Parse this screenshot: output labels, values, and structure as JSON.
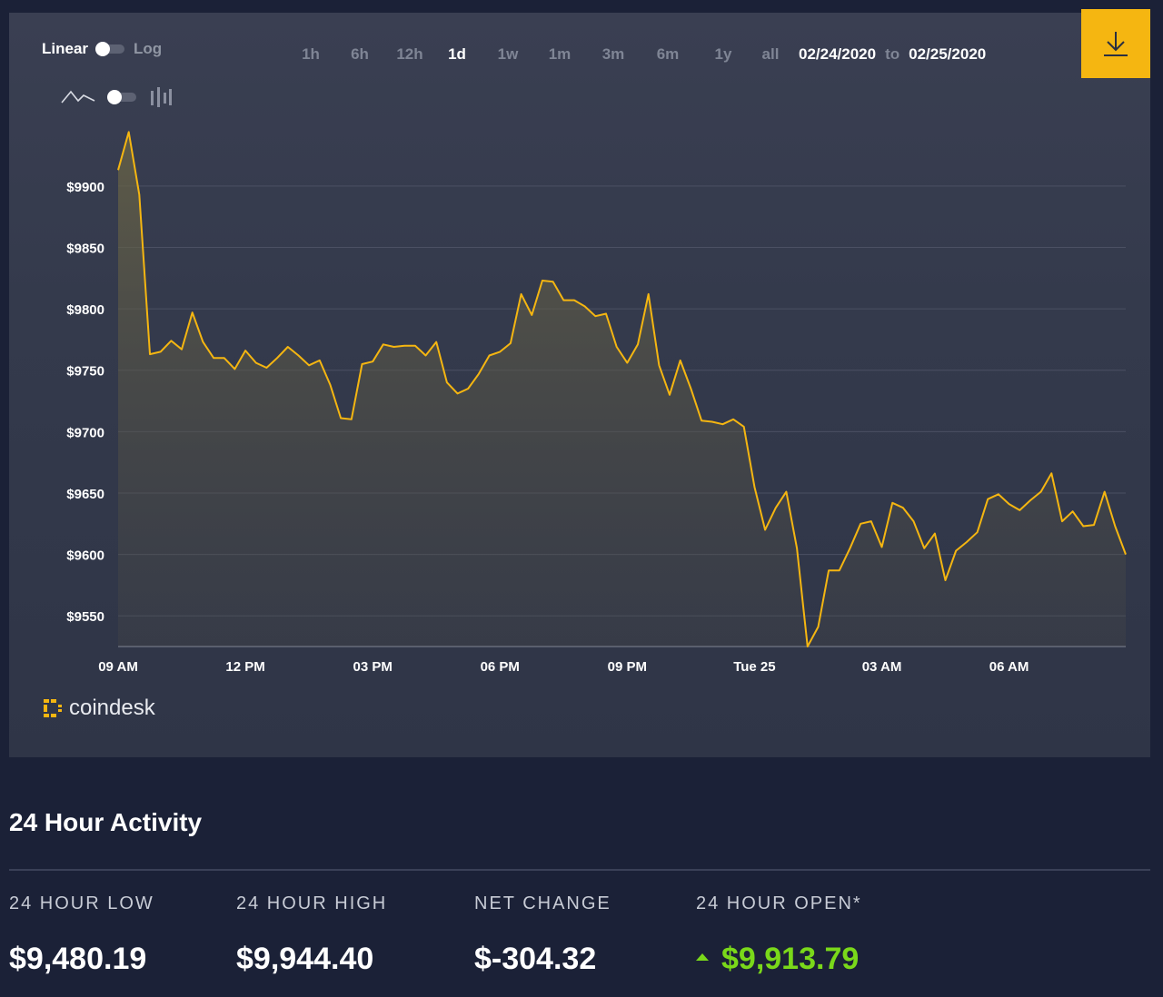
{
  "controls": {
    "scale_linear": "Linear",
    "scale_log": "Log",
    "ranges": [
      "1h",
      "6h",
      "12h",
      "1d",
      "1w",
      "1m",
      "3m",
      "6m",
      "1y",
      "all"
    ],
    "active_range": "1d",
    "date_from": "02/24/2020",
    "date_sep": "to",
    "date_to": "02/25/2020"
  },
  "brand": {
    "name": "coindesk"
  },
  "colors": {
    "line": "#f5b611",
    "accent": "#f5b611",
    "positive": "#7ad81a"
  },
  "chart_data": {
    "type": "area",
    "title": "",
    "xlabel": "",
    "ylabel": "",
    "ylim": [
      9525,
      9945
    ],
    "y_ticks": [
      "$9900",
      "$9850",
      "$9800",
      "$9750",
      "$9700",
      "$9650",
      "$9600",
      "$9550"
    ],
    "y_tick_values": [
      9900,
      9850,
      9800,
      9750,
      9700,
      9650,
      9600,
      9550
    ],
    "x_ticks": [
      "09 AM",
      "12 PM",
      "03 PM",
      "06 PM",
      "09 PM",
      "Tue 25",
      "03 AM",
      "06 AM"
    ],
    "x_tick_hours": [
      9,
      12,
      15,
      18,
      21,
      24,
      27,
      30
    ],
    "grid": true,
    "series": [
      {
        "x_hours": [
          9.0,
          9.25,
          9.5,
          9.75,
          10.0,
          10.25,
          10.5,
          10.75,
          11.0,
          11.25,
          11.5,
          11.75,
          12.0,
          12.25,
          12.5,
          12.75,
          13.0,
          13.25,
          13.5,
          13.75,
          14.0,
          14.25,
          14.5,
          14.75,
          15.0,
          15.25,
          15.5,
          15.75,
          16.0,
          16.25,
          16.5,
          16.75,
          17.0,
          17.25,
          17.5,
          17.75,
          18.0,
          18.25,
          18.5,
          18.75,
          19.0,
          19.25,
          19.5,
          19.75,
          20.0,
          20.25,
          20.5,
          20.75,
          21.0,
          21.25,
          21.5,
          21.75,
          22.0,
          22.25,
          22.5,
          22.75,
          23.0,
          23.25,
          23.5,
          23.75,
          24.0,
          24.25,
          24.5,
          24.75,
          25.0,
          25.25,
          25.5,
          25.75,
          26.0,
          26.25,
          26.5,
          26.75,
          27.0,
          27.25,
          27.5,
          27.75,
          28.0,
          28.25,
          28.5,
          28.75,
          29.0,
          29.25,
          29.5,
          29.75,
          30.0,
          30.25,
          30.5,
          30.75,
          31.0,
          31.25,
          31.5,
          31.75,
          32.0,
          32.25,
          32.5,
          32.75
        ],
        "values": [
          9913,
          9944,
          9893,
          9763,
          9765,
          9774,
          9767,
          9797,
          9773,
          9760,
          9760,
          9751,
          9766,
          9756,
          9752,
          9760,
          9769,
          9762,
          9754,
          9758,
          9738,
          9711,
          9710,
          9755,
          9757,
          9771,
          9769,
          9770,
          9770,
          9762,
          9773,
          9740,
          9731,
          9735,
          9747,
          9762,
          9765,
          9772,
          9812,
          9795,
          9823,
          9822,
          9807,
          9807,
          9802,
          9794,
          9796,
          9769,
          9756,
          9771,
          9812,
          9754,
          9730,
          9758,
          9735,
          9709,
          9708,
          9706,
          9710,
          9704,
          9655,
          9620,
          9638,
          9651,
          9605,
          9525,
          9541,
          9587,
          9587,
          9605,
          9625,
          9627,
          9606,
          9642,
          9638,
          9627,
          9605,
          9617,
          9579,
          9603,
          9610,
          9618,
          9645,
          9649,
          9641,
          9636,
          9644,
          9651,
          9666,
          9627,
          9635,
          9623,
          9624,
          9651,
          9623,
          9600
        ]
      }
    ]
  },
  "activity": {
    "title": "24 Hour Activity",
    "stats": [
      {
        "label": "24 HOUR LOW",
        "value": "$9,480.19"
      },
      {
        "label": "24 HOUR HIGH",
        "value": "$9,944.40"
      },
      {
        "label": "NET CHANGE",
        "value": "$-304.32"
      },
      {
        "label": "24 HOUR OPEN*",
        "value": "$9,913.79"
      }
    ]
  }
}
